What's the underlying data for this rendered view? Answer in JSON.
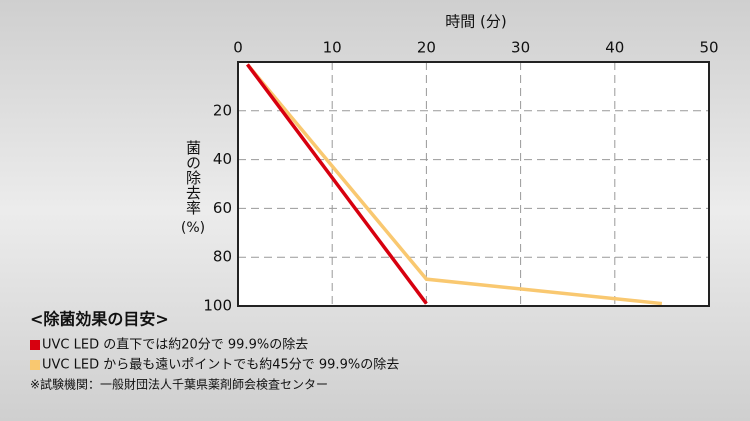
{
  "chart_data": {
    "type": "line",
    "xlabel": "時間 (分)",
    "ylabel": "菌の除去率",
    "ylabel_unit": "(%)",
    "xlim": [
      0,
      50
    ],
    "xticks": [
      0,
      10,
      20,
      30,
      40,
      50
    ],
    "ylim": [
      0,
      100
    ],
    "yticks": [
      20,
      40,
      60,
      80,
      100
    ],
    "y_inverted": true,
    "grid": true,
    "series": [
      {
        "name": "UVC LED の直下では約20分で 99.9%の除去",
        "color": "#d7000f",
        "x": [
          1,
          20
        ],
        "values": [
          1,
          99
        ]
      },
      {
        "name": "UVC LED から最も遠いポイントでも約45分で 99.9%の除去",
        "color": "#f9c870",
        "x": [
          1,
          20,
          45
        ],
        "values": [
          1,
          89,
          99
        ]
      }
    ],
    "legend_title": "<除菌効果の目安>",
    "footnote": "※試験機関：一般財団法人千葉県薬剤師会検査センター"
  }
}
